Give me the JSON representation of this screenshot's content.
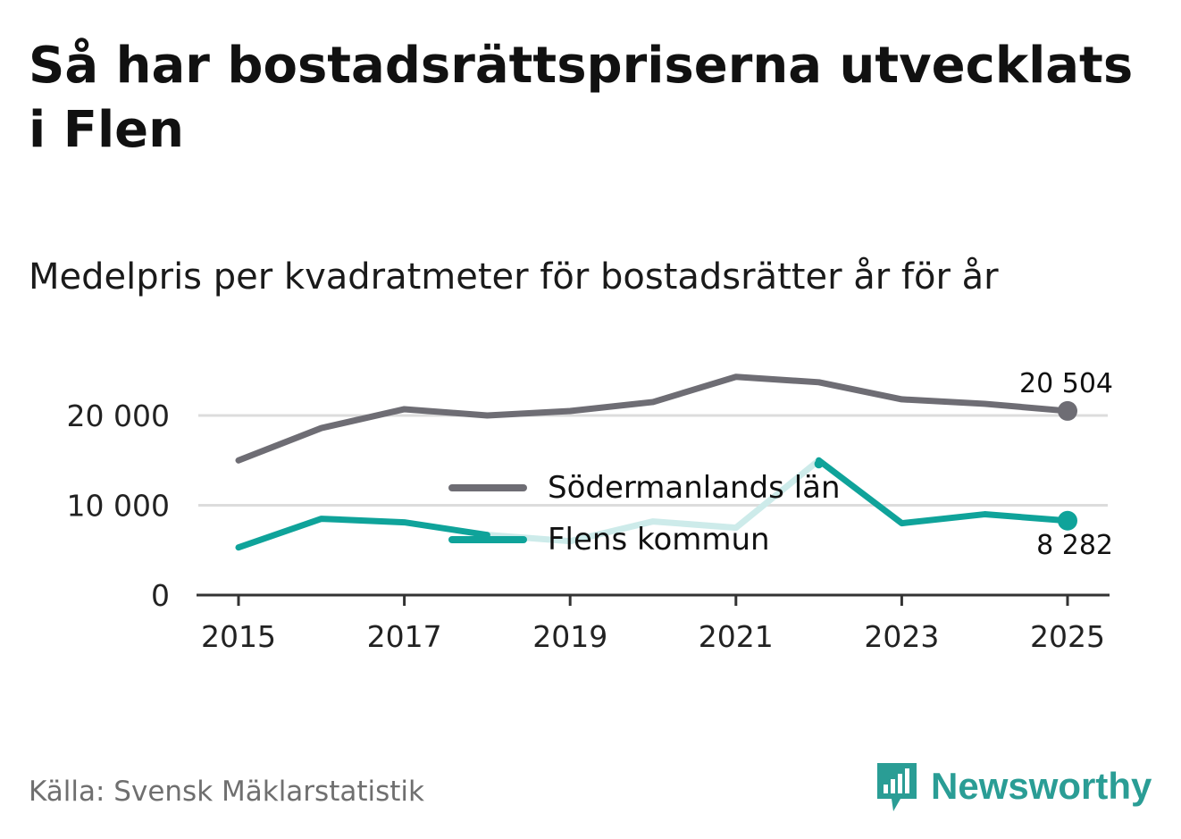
{
  "title": "Så har bostadsrättspriserna utvecklats i Flen",
  "subtitle": "Medelpris per kvadratmeter för bostadsrätter år för år",
  "source": "Källa: Svensk Mäklarstatistik",
  "brand": {
    "name": "Newsworthy",
    "icon": "newsworthy-logo-icon",
    "color": "#2a9d95"
  },
  "colors": {
    "region": "#6e6d74",
    "municipality": "#0fa39a",
    "municipality_faded": "#cdebea",
    "grid": "#dcdcdc",
    "axis": "#333333"
  },
  "chart_data": {
    "type": "line",
    "title": "Medelpris per kvadratmeter för bostadsrätter år för år",
    "x": [
      2015,
      2016,
      2017,
      2018,
      2019,
      2020,
      2021,
      2022,
      2023,
      2024,
      2025
    ],
    "x_ticks": [
      "2015",
      "2017",
      "2019",
      "2021",
      "2023",
      "2025"
    ],
    "y_ticks": [
      "0",
      "10 000",
      "20 000"
    ],
    "y_tick_values": [
      0,
      10000,
      20000
    ],
    "ylim": [
      0,
      25000
    ],
    "grid": true,
    "legend_position": "center",
    "series": [
      {
        "name": "Södermanlands län",
        "values": [
          15000,
          18600,
          20700,
          20000,
          20500,
          21500,
          24300,
          23700,
          21800,
          21300,
          20504
        ],
        "end_label": "20 504"
      },
      {
        "name": "Flens kommun",
        "values": [
          5300,
          8500,
          8100,
          6700,
          6000,
          8200,
          7500,
          15000,
          8000,
          9000,
          8282
        ],
        "faded_years": [
          2018,
          2019,
          2020,
          2021,
          2022
        ],
        "end_label": "8 282"
      }
    ]
  }
}
